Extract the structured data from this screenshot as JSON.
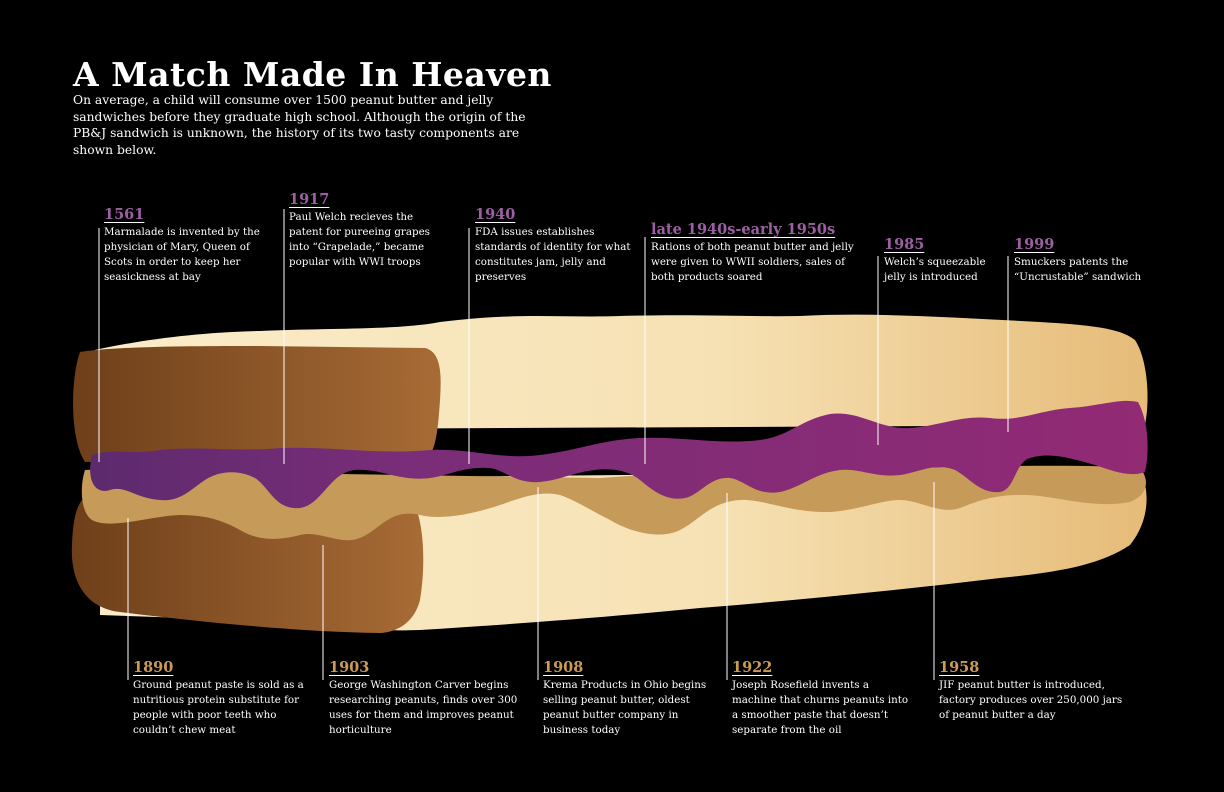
{
  "title": "A Match Made In Heaven",
  "intro": "On average, a child will consume over 1500 peanut butter and jelly sandwiches before they graduate high school. Although the origin of the PB&J sandwich is unknown,  the history of its two tasty components are shown below.",
  "colors": {
    "background": "#000000",
    "jelly": "#8a2d76",
    "peanut_butter": "#c99a55",
    "crust": "#8f5a2b",
    "bread": "#f6e2b8",
    "jelly_year": "#9b5fa2",
    "peanut_year": "#cc9a52"
  },
  "jelly_events": [
    {
      "year": "1561",
      "text": "Marmalade is invented by the physician of Mary, Queen of Scots in order to keep her seasickness at bay"
    },
    {
      "year": "1917",
      "text": "Paul Welch recieves the patent for pureeing grapes into “Grapelade,” became popular with WWI troops"
    },
    {
      "year": "1940",
      "text": "FDA issues establishes standards of identity for what constitutes jam, jelly and preserves"
    },
    {
      "year": "late 1940s-early 1950s",
      "text": "Rations of both peanut butter and jelly were given to WWII soldiers, sales of both products soared"
    },
    {
      "year": "1985",
      "text": "Welch’s squeezable jelly is introduced"
    },
    {
      "year": "1999",
      "text": "Smuckers patents the “Uncrustable” sandwich"
    }
  ],
  "peanut_events": [
    {
      "year": "1890",
      "text": "Ground peanut paste is sold as a nutritious protein substitute for people with poor teeth who couldn’t chew meat"
    },
    {
      "year": "1903",
      "text": "George Washington Carver begins researching peanuts, finds over 300 uses for them and improves peanut horticulture"
    },
    {
      "year": "1908",
      "text": "Krema Products in Ohio begins selling peanut butter, oldest peanut butter company in business today"
    },
    {
      "year": "1922",
      "text": "Joseph Rosefield invents a machine that churns peanuts into a smoother paste that doesn’t separate from the oil"
    },
    {
      "year": "1958",
      "text": "JIF peanut butter is introduced, factory produces over 250,000 jars of peanut butter a day"
    }
  ]
}
